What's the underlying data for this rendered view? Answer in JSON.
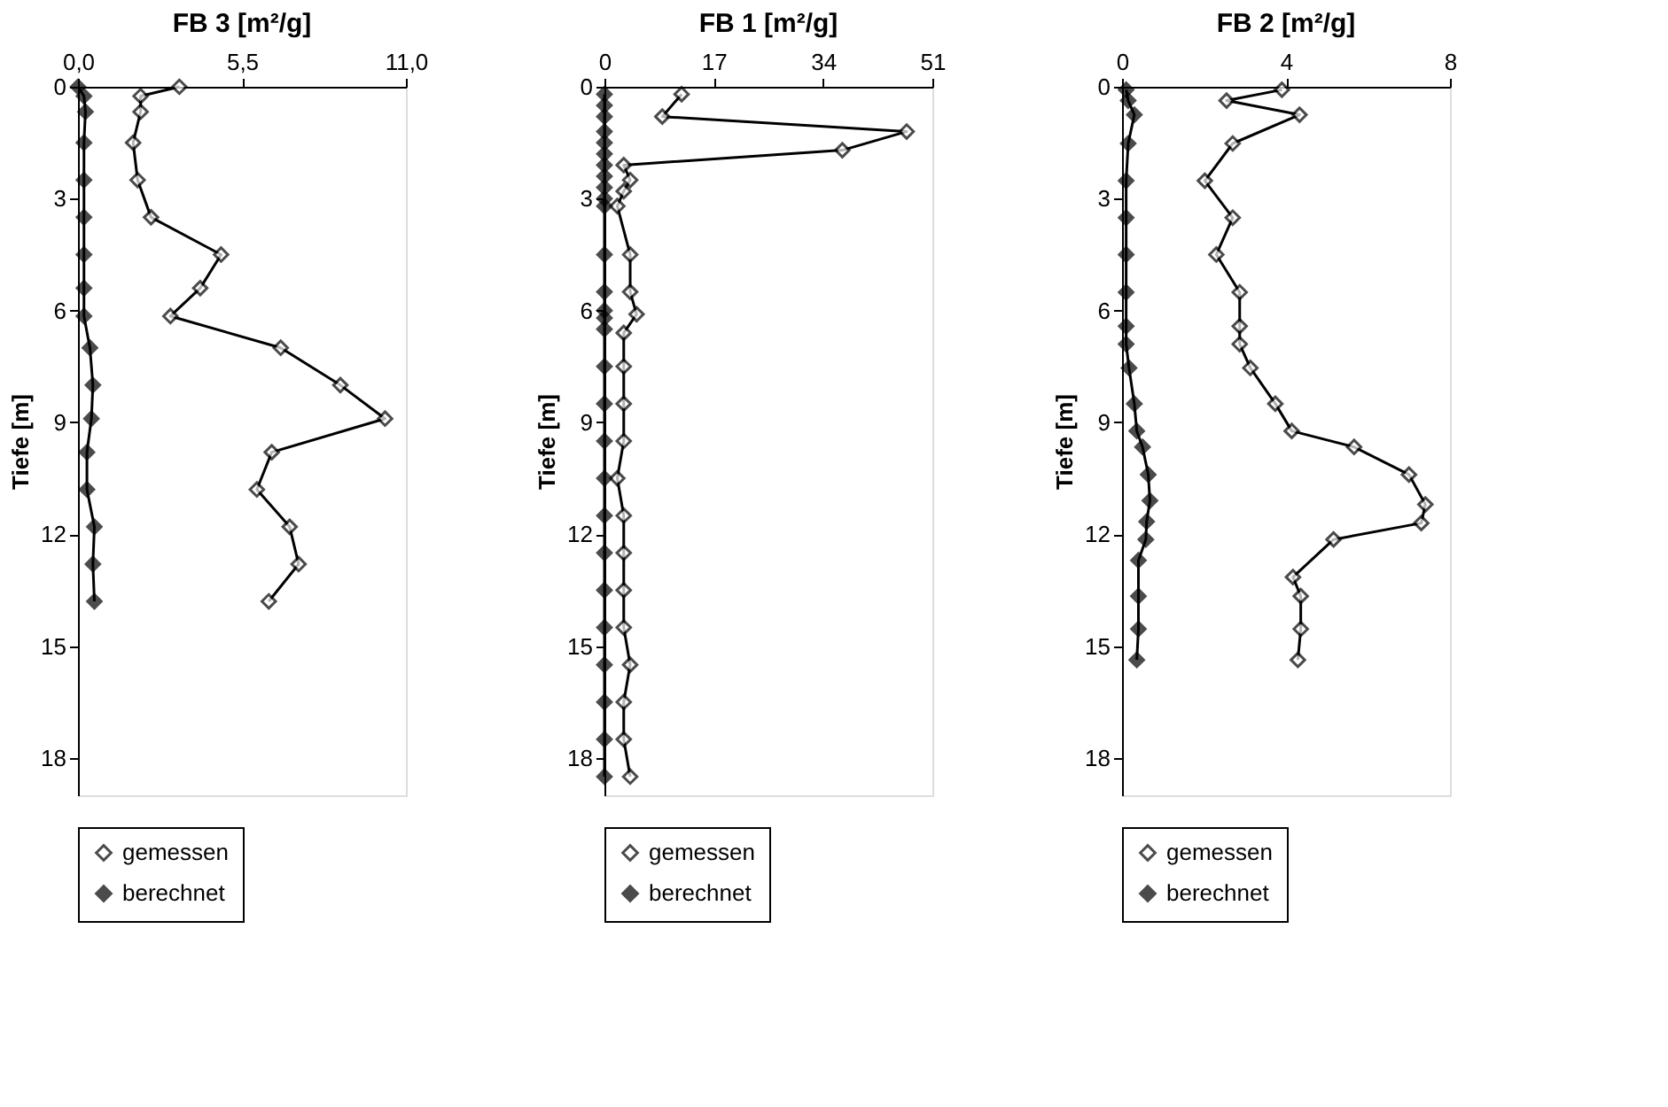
{
  "chart_data": [
    {
      "type": "line",
      "orientation": "horizontal",
      "title": "FB 3 [m²/g]",
      "ylabel": "Tiefe [m]",
      "marker": "diamond",
      "legend": "bottom",
      "grid": false,
      "xlim": [
        0,
        11
      ],
      "xticks": [
        {
          "value": 0,
          "label": "0,0"
        },
        {
          "value": 5.5,
          "label": "5,5"
        },
        {
          "value": 11,
          "label": "11,0"
        }
      ],
      "ylim": [
        19,
        0
      ],
      "yticks": [
        0,
        3,
        6,
        9,
        12,
        15,
        18
      ],
      "series": [
        {
          "name": "gemessen",
          "color": "#000000",
          "values": [
            3.4,
            2.1,
            2.1,
            1.85,
            2.0,
            2.45,
            4.8,
            4.1,
            3.1,
            6.8,
            8.8,
            10.3,
            6.5,
            6.0,
            7.1,
            7.4,
            6.4
          ],
          "x": [
            0,
            0.25,
            0.67,
            1.5,
            2.5,
            3.5,
            4.5,
            5.4,
            6.15,
            7.0,
            8.0,
            8.9,
            9.8,
            10.8,
            11.8,
            12.8,
            13.8
          ]
        },
        {
          "name": "berechnet",
          "color": "#000000",
          "values": [
            0,
            0.2,
            0.25,
            0.2,
            0.2,
            0.2,
            0.2,
            0.2,
            0.2,
            0.4,
            0.5,
            0.45,
            0.3,
            0.3,
            0.55,
            0.5,
            0.55
          ],
          "x": [
            0,
            0.25,
            0.67,
            1.5,
            2.5,
            3.5,
            4.5,
            5.4,
            6.15,
            7.0,
            8.0,
            8.9,
            9.8,
            10.8,
            11.8,
            12.8,
            13.8
          ]
        }
      ]
    },
    {
      "type": "line",
      "orientation": "horizontal",
      "title": "FB 1 [m²/g]",
      "ylabel": "Tiefe [m]",
      "marker": "diamond",
      "legend": "bottom",
      "grid": false,
      "xlim": [
        0,
        51
      ],
      "xticks": [
        0,
        17,
        34,
        51
      ],
      "ylim": [
        19,
        0
      ],
      "yticks": [
        0,
        3,
        6,
        9,
        12,
        15,
        18
      ],
      "series": [
        {
          "name": "gemessen",
          "color": "#000000",
          "values": [
            12,
            9,
            47,
            37,
            3,
            4,
            3,
            2,
            4,
            4,
            5,
            3,
            3,
            3,
            3,
            2,
            3,
            3,
            3,
            3,
            4,
            3,
            3,
            4
          ],
          "x": [
            0.2,
            0.8,
            1.2,
            1.7,
            2.1,
            2.5,
            2.8,
            3.2,
            4.5,
            5.5,
            6.1,
            6.6,
            7.5,
            8.5,
            9.5,
            10.5,
            11.5,
            12.5,
            13.5,
            14.5,
            15.5,
            16.5,
            17.5,
            18.5
          ]
        },
        {
          "name": "berechnet",
          "color": "#000000",
          "values": [
            0,
            0,
            0,
            0,
            0,
            0,
            0,
            0,
            0,
            0,
            0,
            0,
            0,
            0,
            0,
            0,
            0,
            0,
            0,
            0,
            0,
            0,
            0,
            0,
            0,
            0,
            0,
            0
          ],
          "x": [
            0.2,
            0.5,
            0.8,
            1.2,
            1.5,
            1.8,
            2.1,
            2.4,
            2.7,
            3.0,
            3.2,
            4.5,
            5.5,
            6.0,
            6.2,
            6.5,
            7.5,
            8.5,
            9.5,
            10.5,
            11.5,
            12.5,
            13.5,
            14.5,
            15.5,
            16.5,
            17.5,
            18.5
          ]
        }
      ]
    },
    {
      "type": "line",
      "orientation": "horizontal",
      "title": "FB 2 [m²/g]",
      "ylabel": "Tiefe [m]",
      "marker": "diamond",
      "legend": "bottom",
      "grid": false,
      "xlim": [
        0,
        8
      ],
      "xticks": [
        0,
        4,
        8
      ],
      "ylim": [
        19,
        0
      ],
      "yticks": [
        0,
        3,
        6,
        9,
        12,
        15,
        18
      ],
      "series": [
        {
          "name": "gemessen",
          "color": "#000000",
          "values": [
            3.9,
            2.55,
            4.33,
            2.7,
            2.02,
            2.7,
            2.3,
            2.87,
            2.87,
            2.87,
            3.13,
            3.74,
            4.14,
            5.66,
            7.0,
            7.4,
            7.3,
            5.16,
            4.17,
            4.36,
            4.36,
            4.29
          ],
          "x": [
            0.08,
            0.37,
            0.75,
            1.52,
            2.52,
            3.51,
            4.5,
            5.51,
            6.42,
            6.9,
            7.54,
            8.5,
            9.23,
            9.66,
            10.4,
            11.2,
            11.7,
            12.14,
            13.15,
            13.66,
            14.54,
            15.37
          ]
        },
        {
          "name": "berechnet",
          "color": "#000000",
          "values": [
            0.1,
            0.15,
            0.3,
            0.15,
            0.1,
            0.1,
            0.1,
            0.1,
            0.1,
            0.1,
            0.17,
            0.3,
            0.36,
            0.5,
            0.64,
            0.68,
            0.6,
            0.58,
            0.4,
            0.4,
            0.4,
            0.36
          ],
          "x": [
            0.08,
            0.37,
            0.75,
            1.52,
            2.52,
            3.51,
            4.5,
            5.51,
            6.42,
            6.9,
            7.54,
            8.5,
            9.23,
            9.66,
            10.4,
            11.1,
            11.66,
            12.14,
            12.7,
            13.66,
            14.54,
            15.37
          ]
        }
      ]
    }
  ]
}
